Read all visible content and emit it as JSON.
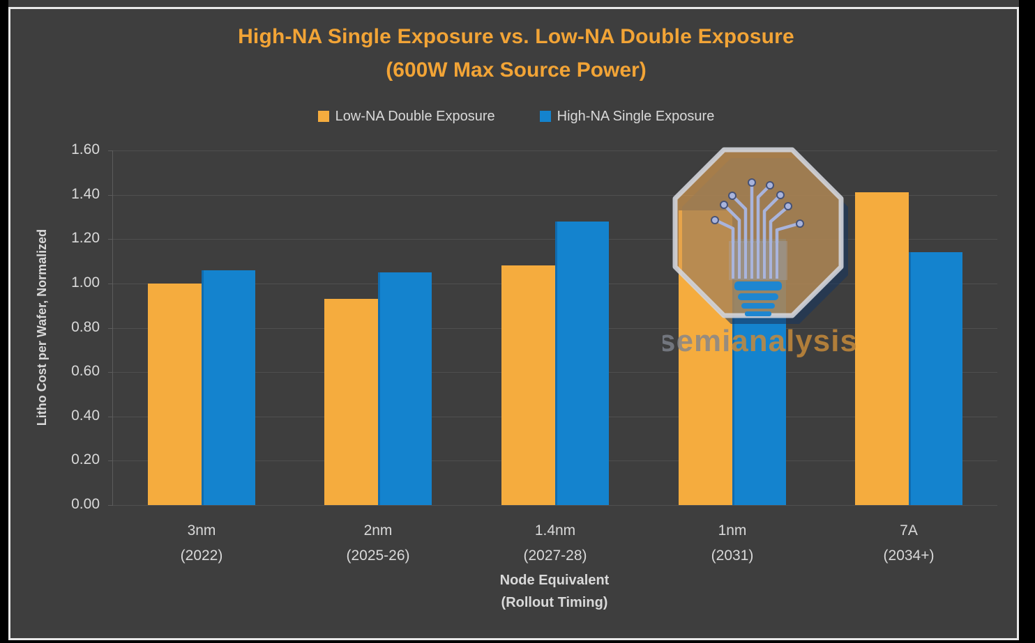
{
  "page": {
    "background": "#000000",
    "panel_background": "#3E3E3E",
    "panel_border": "#E8E8E8",
    "gridline_color": "#4F4F4F",
    "text_color": "#D9D9D9",
    "title_color": "#F2A436"
  },
  "title": {
    "line1": "High-NA Single Exposure vs. Low-NA Double Exposure",
    "line2": "(600W Max Source Power)"
  },
  "chart_data": {
    "type": "bar",
    "title": "High-NA Single Exposure vs. Low-NA Double Exposure",
    "subtitle": "(600W Max Source Power)",
    "categories": [
      "3nm (2022)",
      "2nm (2025-26)",
      "1.4nm (2027-28)",
      "1nm (2031)",
      "7A (2034+)"
    ],
    "series": [
      {
        "name": "Low-NA Double Exposure",
        "color": "#F5AC3E",
        "values": [
          1.0,
          0.93,
          1.08,
          1.33,
          1.41
        ]
      },
      {
        "name": "High-NA Single Exposure",
        "color": "#1483CE",
        "values": [
          1.06,
          1.05,
          1.28,
          1.2,
          1.14
        ]
      }
    ],
    "xlabel": "Node Equivalent (Rollout Timing)",
    "ylabel": "Litho Cost per Wafer, Normalized",
    "ylim": [
      0,
      1.6
    ],
    "ytick_step": 0.2,
    "grid": true,
    "legend_position": "top-center"
  },
  "y_axis": {
    "title": "Litho Cost per Wafer, Normalized",
    "ticks": [
      "1.60",
      "1.40",
      "1.20",
      "1.00",
      "0.80",
      "0.60",
      "0.40",
      "0.20",
      "0.00"
    ]
  },
  "x_axis": {
    "title_line1": "Node Equivalent",
    "title_line2": "(Rollout Timing)",
    "ticks": [
      {
        "line1": "3nm",
        "line2": "(2022)"
      },
      {
        "line1": "2nm",
        "line2": "(2025-26)"
      },
      {
        "line1": "1.4nm",
        "line2": "(2027-28)"
      },
      {
        "line1": "1nm",
        "line2": "(2031)"
      },
      {
        "line1": "7A",
        "line2": "(2034+)"
      }
    ]
  },
  "legend": [
    {
      "label": "Low-NA Double Exposure",
      "color": "#F5AC3E"
    },
    {
      "label": "High-NA Single Exposure",
      "color": "#1483CE"
    }
  ],
  "watermark": {
    "brand_prefix": "semi",
    "brand_suffix": "analysis",
    "octagon_fill": "rgba(222,160,82,0.65)",
    "octagon_border": "rgba(210,212,218,0.9)",
    "shadow_color": "rgba(25,55,95,0.6)",
    "circuit_color": "#A9B4DC",
    "bulb_base_color": "#1E86D0",
    "prefix_color": "rgba(128,133,143,0.8)",
    "suffix_color": "rgba(198,138,58,0.85)"
  }
}
